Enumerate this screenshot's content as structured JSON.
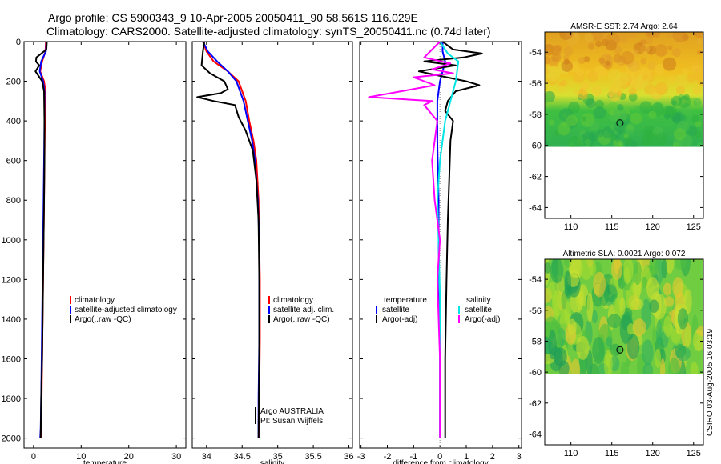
{
  "title": {
    "line1": "Argo profile: CS 5900343_9 10-Apr-2005 20050411_90 58.561S 116.029E",
    "line2": "Climatology: CARS2000. Satellite-adjusted climatology: synTS_20050411.nc (0.74d later)"
  },
  "colors": {
    "clim": "#ff0000",
    "sat": "#0000ff",
    "argo": "#000000",
    "sal_sat": "#00e5e5",
    "sal_argo": "#ff00ff"
  },
  "chart_data": [
    {
      "type": "line",
      "name": "temperature",
      "xlabel": "temperature",
      "ylabel": "",
      "xlim": [
        -2,
        32
      ],
      "ylim": [
        2050,
        0
      ],
      "xticks": [
        "0",
        "10",
        "20",
        "30"
      ],
      "xtick_values": [
        0,
        10,
        20,
        30
      ],
      "yticks": [
        "0",
        "200",
        "400",
        "600",
        "800",
        "1000",
        "1200",
        "1400",
        "1600",
        "1800",
        "2000"
      ],
      "ytick_values": [
        0,
        200,
        400,
        600,
        800,
        1000,
        1200,
        1400,
        1600,
        1800,
        2000
      ],
      "legend": {
        "position": "center-right",
        "items": [
          "climatology",
          "satellite-adjusted climatology",
          "Argo(..raw -QC)"
        ]
      },
      "series": [
        {
          "name": "climatology",
          "color": "clim",
          "x": [
            2.6,
            2.5,
            1.8,
            1.4,
            2.2,
            2.5,
            2.4,
            2.3,
            2.2,
            2.1,
            2.0,
            1.9,
            1.8,
            1.7,
            1.6,
            1.5
          ],
          "y": [
            0,
            50,
            100,
            150,
            200,
            250,
            400,
            600,
            800,
            1000,
            1200,
            1400,
            1600,
            1800,
            1950,
            2000
          ]
        },
        {
          "name": "satellite-adjusted climatology",
          "color": "sat",
          "x": [
            2.7,
            2.6,
            1.6,
            1.3,
            2.0,
            2.3,
            2.3,
            2.2,
            2.1,
            2.0,
            1.9,
            1.8,
            1.7,
            1.6,
            1.5,
            1.4
          ],
          "y": [
            0,
            50,
            100,
            150,
            200,
            250,
            400,
            600,
            800,
            1000,
            1200,
            1400,
            1600,
            1800,
            1950,
            2000
          ]
        },
        {
          "name": "Argo(..raw -QC)",
          "color": "argo",
          "x": [
            2.8,
            2.7,
            0.6,
            0.5,
            1.2,
            0.4,
            1.8,
            2.2,
            2.3,
            2.3,
            2.2,
            2.1,
            2.0,
            1.9,
            1.8,
            1.6,
            1.5
          ],
          "y": [
            0,
            40,
            80,
            100,
            120,
            150,
            200,
            250,
            400,
            600,
            800,
            1000,
            1200,
            1400,
            1600,
            1800,
            2000
          ]
        }
      ]
    },
    {
      "type": "line",
      "name": "salinity",
      "xlabel": "salinity",
      "xlim": [
        33.8,
        36.05
      ],
      "ylim": [
        2050,
        0
      ],
      "xticks": [
        "34",
        "34.5",
        "35",
        "35.5",
        "36"
      ],
      "xtick_values": [
        34,
        34.5,
        35,
        35.5,
        36
      ],
      "legend": {
        "position": "center-right",
        "items": [
          "climatology",
          "satellite adj. clim.",
          "Argo(..raw -QC)"
        ]
      },
      "annotation": {
        "line1": "Argo AUSTRALIA",
        "line2": "PI: Susan Wijffels"
      },
      "series": [
        {
          "name": "climatology",
          "color": "clim",
          "x": [
            33.95,
            34.0,
            34.1,
            34.3,
            34.45,
            34.55,
            34.6,
            34.66,
            34.7,
            34.73,
            34.74,
            34.75,
            34.75,
            34.74,
            34.74
          ],
          "y": [
            0,
            50,
            100,
            150,
            200,
            300,
            400,
            500,
            600,
            800,
            1000,
            1200,
            1500,
            1800,
            2000
          ]
        },
        {
          "name": "satellite adj. clim.",
          "color": "sat",
          "x": [
            33.95,
            34.02,
            34.15,
            34.3,
            34.42,
            34.52,
            34.58,
            34.64,
            34.68,
            34.72,
            34.74,
            34.74,
            34.74,
            34.73,
            34.73
          ],
          "y": [
            0,
            50,
            100,
            150,
            200,
            300,
            400,
            500,
            600,
            800,
            1000,
            1200,
            1500,
            1800,
            2000
          ]
        },
        {
          "name": "Argo(..raw -QC)",
          "color": "argo",
          "x": [
            33.97,
            33.95,
            33.93,
            34.05,
            34.15,
            34.25,
            34.3,
            34.2,
            33.87,
            34.1,
            34.4,
            34.45,
            34.55,
            34.65,
            34.7,
            34.73,
            34.74,
            34.74,
            34.73
          ],
          "y": [
            0,
            50,
            120,
            160,
            180,
            200,
            240,
            260,
            280,
            300,
            320,
            380,
            450,
            550,
            700,
            900,
            1200,
            1600,
            2000
          ]
        }
      ]
    },
    {
      "type": "line",
      "name": "difference",
      "xlabel": "difference from climatology",
      "xlim": [
        -3.05,
        3.1
      ],
      "ylim": [
        2050,
        0
      ],
      "xticks": [
        "-3",
        "-2",
        "-1",
        "0",
        "1",
        "2",
        "3"
      ],
      "xtick_values": [
        -3,
        -2,
        -1,
        0,
        1,
        2,
        3
      ],
      "legend": {
        "position": "center",
        "items": [
          "temperature",
          "satellite",
          "Argo(-adj)",
          "salinity",
          "satellite",
          "Argo(-adj)"
        ]
      },
      "series": [
        {
          "name": "temperature satellite",
          "color": "sat",
          "x": [
            0.1,
            0.1,
            0.2,
            0.1,
            0.0,
            -0.1,
            -0.1,
            -0.05,
            -0.05,
            -0.03,
            0.0,
            0.0,
            0.0
          ],
          "y": [
            0,
            50,
            100,
            150,
            200,
            300,
            500,
            800,
            1000,
            1200,
            1500,
            1800,
            2000
          ]
        },
        {
          "name": "temperature Argo(-adj)",
          "color": "argo",
          "x": [
            0.1,
            0.5,
            1.6,
            0.9,
            -0.6,
            0.6,
            -0.8,
            -0.1,
            1.0,
            1.5,
            0.6,
            0.3,
            0.2,
            0.5,
            0.4,
            0.35,
            0.3,
            0.25,
            0.2,
            0.2
          ],
          "y": [
            0,
            40,
            60,
            80,
            100,
            120,
            150,
            170,
            200,
            220,
            250,
            300,
            350,
            400,
            500,
            700,
            900,
            1200,
            1600,
            2000
          ]
        },
        {
          "name": "salinity satellite",
          "color": "sal_sat",
          "x": [
            0.0,
            0.3,
            0.7,
            0.6,
            0.4,
            0.2,
            0.0,
            -0.1,
            -0.05,
            0.0,
            0.0,
            0.0
          ],
          "y": [
            0,
            60,
            100,
            200,
            300,
            400,
            600,
            800,
            1000,
            1300,
            1700,
            2000
          ]
        },
        {
          "name": "salinity Argo(-adj)",
          "color": "sal_argo",
          "x": [
            0.0,
            -0.6,
            0.4,
            -0.3,
            0.5,
            -1.0,
            -0.2,
            -2.7,
            -0.3,
            -0.6,
            -0.1,
            -0.3,
            -0.2,
            0.0,
            -0.1,
            0.0,
            0.0
          ],
          "y": [
            0,
            80,
            110,
            140,
            160,
            180,
            220,
            280,
            300,
            320,
            400,
            600,
            800,
            1000,
            1200,
            1600,
            2000
          ]
        }
      ]
    },
    {
      "type": "heatmap",
      "name": "sst map",
      "title": "AMSR-E SST: 2.74 Argo: 2.64",
      "xlim": [
        106.8,
        126.2
      ],
      "ylim": [
        -64.7,
        -52.7
      ],
      "data_extent_lat": [
        -60.1,
        -52.7
      ],
      "xticks": [
        "110",
        "115",
        "120",
        "125"
      ],
      "xtick_values": [
        110,
        115,
        120,
        125
      ],
      "yticks": [
        "-54",
        "-56",
        "-58",
        "-60",
        "-62",
        "-64"
      ],
      "ytick_values": [
        -54,
        -56,
        -58,
        -60,
        -62,
        -64
      ],
      "marker": {
        "lon": 116.0,
        "lat": -58.56
      }
    },
    {
      "type": "heatmap",
      "name": "sla map",
      "title": "Altimetric SLA: 0.0021 Argo: 0.072",
      "xlim": [
        106.8,
        126.2
      ],
      "ylim": [
        -64.7,
        -52.7
      ],
      "data_extent_lat": [
        -60.1,
        -52.7
      ],
      "xticks": [
        "110",
        "115",
        "120",
        "125"
      ],
      "xtick_values": [
        110,
        115,
        120,
        125
      ],
      "yticks": [
        "-54",
        "-56",
        "-58",
        "-60",
        "-62",
        "-64"
      ],
      "ytick_values": [
        -54,
        -56,
        -58,
        -60,
        -62,
        -64
      ],
      "marker": {
        "lon": 116.0,
        "lat": -58.56
      }
    }
  ],
  "footer": {
    "stamp": "CSIRO 03-Aug-2005 16:03:19"
  }
}
